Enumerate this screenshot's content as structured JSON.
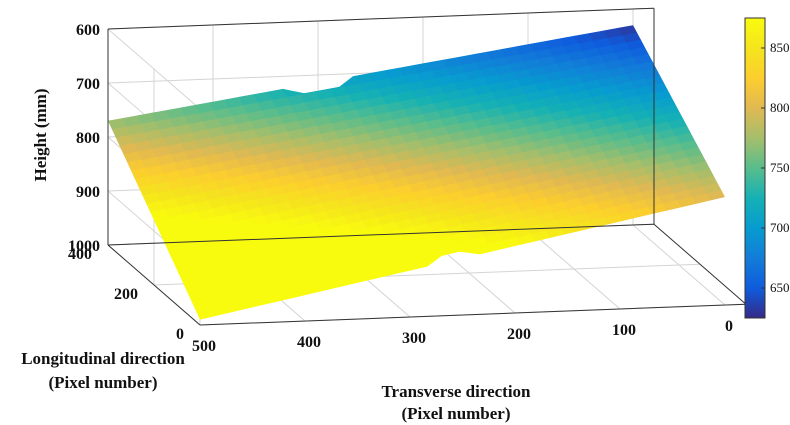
{
  "chart_data": {
    "type": "surface3d",
    "title": "",
    "xlabel_line1": "Transverse direction",
    "xlabel_line2": "(Pixel number)",
    "ylabel_line1": "Longitudinal direction",
    "ylabel_line2": "(Pixel number)",
    "zlabel": "Height (mm)",
    "x_ticks": [
      "500",
      "400",
      "300",
      "200",
      "100",
      "0"
    ],
    "x_tick_values": [
      500,
      400,
      300,
      200,
      100,
      0
    ],
    "y_ticks": [
      "0",
      "200",
      "400"
    ],
    "y_tick_values": [
      0,
      200,
      400
    ],
    "z_ticks": [
      "600",
      "700",
      "800",
      "900",
      "1000"
    ],
    "z_tick_values": [
      600,
      700,
      800,
      900,
      1000
    ],
    "xlim": [
      0,
      520
    ],
    "ylim": [
      0,
      400
    ],
    "zlim": [
      600,
      1000
    ],
    "z_reversed": true,
    "grid": true,
    "colormap": "parula",
    "colorbar": {
      "ticks": [
        "650",
        "700",
        "750",
        "800",
        "850"
      ],
      "tick_values": [
        650,
        700,
        750,
        800,
        850
      ],
      "range": [
        625,
        875
      ]
    },
    "surface_corners": [
      {
        "x": 500,
        "y": 0,
        "z": 990
      },
      {
        "x": 0,
        "y": 0,
        "z": 800
      },
      {
        "x": 500,
        "y": 400,
        "z": 770
      },
      {
        "x": 0,
        "y": 400,
        "z": 630
      }
    ]
  }
}
